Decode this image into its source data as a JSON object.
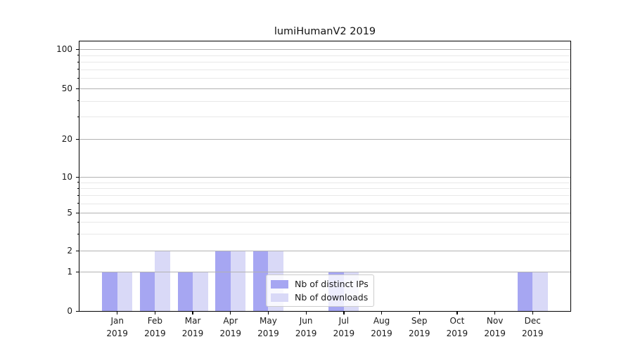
{
  "title": "lumiHumanV2 2019",
  "legend": {
    "items": [
      {
        "label": "Nb of distinct IPs",
        "color_key": "distinct_ips"
      },
      {
        "label": "Nb of downloads",
        "color_key": "downloads"
      }
    ]
  },
  "colors": {
    "distinct_ips": "#a6a6f2",
    "downloads": "#d9d9f7",
    "grid_major": "#b2b2b2",
    "grid_minor": "#e8e8e8",
    "spine": "#000000",
    "text": "#1a1a1a",
    "legend_bg": "rgba(255,255,255,0.8)",
    "legend_border": "#cccccc"
  },
  "x_axis": {
    "year": "2019",
    "months": [
      "Jan",
      "Feb",
      "Mar",
      "Apr",
      "May",
      "Jun",
      "Jul",
      "Aug",
      "Sep",
      "Oct",
      "Nov",
      "Dec"
    ]
  },
  "y_axis": {
    "scale": "symlog",
    "ticks": [
      0,
      1,
      2,
      5,
      10,
      20,
      50,
      100
    ],
    "minor_ticks": [
      3,
      4,
      6,
      7,
      8,
      9,
      30,
      40,
      60,
      70,
      80,
      90
    ]
  },
  "chart_data": {
    "type": "bar",
    "title": "lumiHumanV2 2019",
    "categories": [
      "Jan 2019",
      "Feb 2019",
      "Mar 2019",
      "Apr 2019",
      "May 2019",
      "Jun 2019",
      "Jul 2019",
      "Aug 2019",
      "Sep 2019",
      "Oct 2019",
      "Nov 2019",
      "Dec 2019"
    ],
    "series": [
      {
        "name": "Nb of distinct IPs",
        "values": [
          1,
          1,
          1,
          2,
          2,
          0,
          1,
          0,
          0,
          0,
          0,
          1
        ]
      },
      {
        "name": "Nb of downloads",
        "values": [
          1,
          2,
          1,
          2,
          2,
          0,
          1,
          0,
          0,
          0,
          0,
          1
        ]
      }
    ],
    "xlabel": "",
    "ylabel": "",
    "yscale": "symlog",
    "ylim": [
      0,
      110
    ],
    "yticks": [
      0,
      1,
      2,
      5,
      10,
      20,
      50,
      100
    ],
    "grid": "horizontal major+minor",
    "legend_position": "inside lower center"
  }
}
